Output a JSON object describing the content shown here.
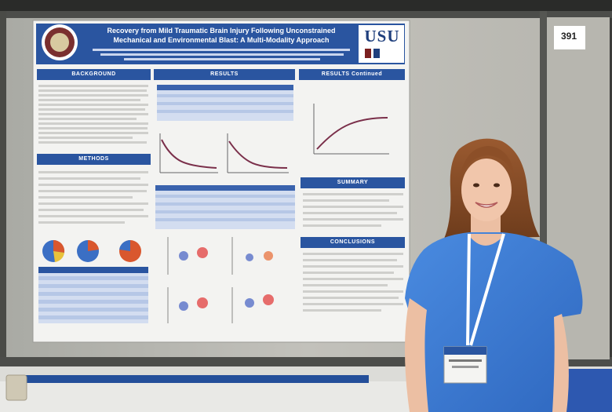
{
  "poster": {
    "title": "Recovery from Mild Traumatic Brain Injury Following Unconstrained\nMechanical and Environmental Blast: A Multi-Modality Approach",
    "logo_text": "USU",
    "sections": {
      "background": "BACKGROUND",
      "results": "RESULTS",
      "results_continued": "RESULTS Continued",
      "methods": "METHODS",
      "summary": "SUMMARY",
      "conclusions": "CONCLUSIONS"
    }
  },
  "booth": {
    "board_number": "391"
  },
  "colors": {
    "poster_blue": "#2a55a0",
    "dress_blue": "#3d7ed6",
    "backdrop": "#c3c2bc",
    "pole_gray": "#4c4d4a"
  }
}
